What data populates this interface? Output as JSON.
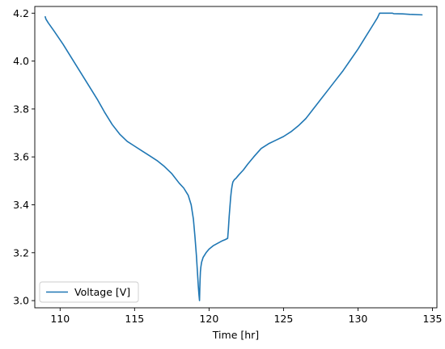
{
  "chart_data": {
    "type": "line",
    "title": "",
    "xlabel": "Time [hr]",
    "ylabel": "",
    "xlim": [
      108.3,
      135.3
    ],
    "ylim": [
      2.97,
      4.228
    ],
    "grid": false,
    "legend_position": "lower left",
    "x_ticks": [
      110,
      115,
      120,
      125,
      130,
      135
    ],
    "x_tick_labels": [
      "110",
      "115",
      "120",
      "125",
      "130",
      "135"
    ],
    "y_ticks": [
      3.0,
      3.2,
      3.4,
      3.6,
      3.8,
      4.0,
      4.2
    ],
    "y_tick_labels": [
      "3.0",
      "3.2",
      "3.4",
      "3.6",
      "3.8",
      "4.0",
      "4.2"
    ],
    "series": [
      {
        "name": "Voltage [V]",
        "color": "#1f77b4",
        "x": [
          109.0,
          109.05,
          109.2,
          109.6,
          110.2,
          111.0,
          112.0,
          112.5,
          113.0,
          113.5,
          114.0,
          114.5,
          115.0,
          115.5,
          116.0,
          116.5,
          117.0,
          117.5,
          118.0,
          118.3,
          118.6,
          118.8,
          118.95,
          119.05,
          119.15,
          119.22,
          119.28,
          119.33,
          119.36,
          119.38,
          119.4,
          119.42,
          119.45,
          119.5,
          119.6,
          119.8,
          120.0,
          120.3,
          120.6,
          120.9,
          121.1,
          121.25,
          121.3,
          121.35,
          121.4,
          121.45,
          121.5,
          121.55,
          121.6,
          121.7,
          121.8,
          122.0,
          122.3,
          122.6,
          123.0,
          123.5,
          124.0,
          124.5,
          125.0,
          125.5,
          126.0,
          126.5,
          127.0,
          127.5,
          128.0,
          128.5,
          129.0,
          129.5,
          130.0,
          130.5,
          131.0,
          131.3,
          131.45,
          132.0,
          132.3,
          132.4,
          133.0,
          133.5,
          134.3
        ],
        "y": [
          4.185,
          4.175,
          4.16,
          4.125,
          4.07,
          3.99,
          3.89,
          3.84,
          3.785,
          3.735,
          3.695,
          3.665,
          3.645,
          3.625,
          3.605,
          3.585,
          3.56,
          3.53,
          3.49,
          3.47,
          3.44,
          3.4,
          3.34,
          3.27,
          3.19,
          3.12,
          3.06,
          3.02,
          3.0,
          3.05,
          3.09,
          3.12,
          3.14,
          3.16,
          3.18,
          3.2,
          3.215,
          3.23,
          3.24,
          3.25,
          3.255,
          3.26,
          3.3,
          3.35,
          3.39,
          3.43,
          3.46,
          3.48,
          3.495,
          3.505,
          3.51,
          3.525,
          3.545,
          3.57,
          3.6,
          3.635,
          3.655,
          3.67,
          3.685,
          3.705,
          3.73,
          3.76,
          3.8,
          3.84,
          3.88,
          3.92,
          3.96,
          4.005,
          4.05,
          4.1,
          4.15,
          4.18,
          4.2,
          4.2,
          4.2,
          4.198,
          4.197,
          4.195,
          4.193
        ]
      }
    ]
  }
}
